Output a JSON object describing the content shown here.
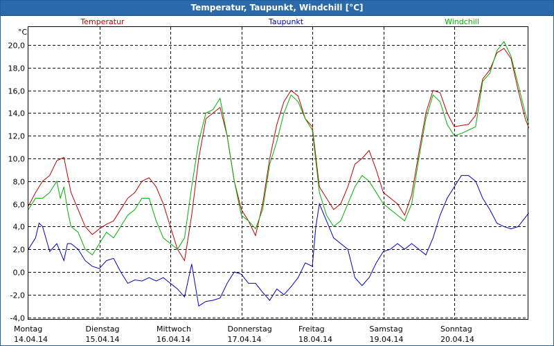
{
  "window": {
    "title": "Temperatur, Taupunkt, Windchill [°C]"
  },
  "chart_data": {
    "type": "line",
    "unit": "°C",
    "ylim": [
      -4,
      21
    ],
    "y_ticks": [
      "20,0",
      "18,0",
      "16,0",
      "14,0",
      "12,0",
      "10,0",
      "8,0",
      "6,0",
      "4,0",
      "2,0",
      "0,0",
      "-2,0",
      "-4,0"
    ],
    "y_tick_values": [
      20,
      18,
      16,
      14,
      12,
      10,
      8,
      6,
      4,
      2,
      0,
      -2,
      -4
    ],
    "x_range": [
      0,
      7
    ],
    "x_ticks": [
      {
        "day": "Montag",
        "date": "14.04.14",
        "x": 0
      },
      {
        "day": "Dienstag",
        "date": "15.04.14",
        "x": 1
      },
      {
        "day": "Mittwoch",
        "date": "16.04.14",
        "x": 2
      },
      {
        "day": "Donnerstag",
        "date": "17.04.14",
        "x": 3
      },
      {
        "day": "Freitag",
        "date": "18.04.14",
        "x": 4
      },
      {
        "day": "Samstag",
        "date": "19.04.14",
        "x": 5
      },
      {
        "day": "Sonntag",
        "date": "20.04.14",
        "x": 6
      }
    ],
    "grid": true,
    "legend_position": "top",
    "series": [
      {
        "name": "Temperatur",
        "color": "#c00000",
        "points": [
          [
            0,
            5.8
          ],
          [
            0.1,
            7.0
          ],
          [
            0.2,
            8.0
          ],
          [
            0.3,
            8.5
          ],
          [
            0.4,
            9.8
          ],
          [
            0.5,
            10.1
          ],
          [
            0.6,
            7.0
          ],
          [
            0.7,
            5.5
          ],
          [
            0.8,
            4.0
          ],
          [
            0.9,
            3.3
          ],
          [
            1.0,
            3.8
          ],
          [
            1.1,
            4.2
          ],
          [
            1.2,
            4.5
          ],
          [
            1.3,
            5.5
          ],
          [
            1.4,
            6.5
          ],
          [
            1.5,
            7.0
          ],
          [
            1.6,
            8.0
          ],
          [
            1.7,
            8.3
          ],
          [
            1.8,
            7.5
          ],
          [
            1.9,
            6.0
          ],
          [
            2.0,
            4.0
          ],
          [
            2.1,
            2.0
          ],
          [
            2.2,
            1.0
          ],
          [
            2.3,
            5.0
          ],
          [
            2.4,
            10.0
          ],
          [
            2.5,
            13.5
          ],
          [
            2.6,
            14.0
          ],
          [
            2.7,
            14.5
          ],
          [
            2.8,
            12.0
          ],
          [
            2.9,
            8.0
          ],
          [
            3.0,
            5.5
          ],
          [
            3.1,
            4.5
          ],
          [
            3.2,
            3.2
          ],
          [
            3.3,
            6.0
          ],
          [
            3.4,
            10.0
          ],
          [
            3.5,
            13.0
          ],
          [
            3.6,
            15.0
          ],
          [
            3.7,
            16.0
          ],
          [
            3.8,
            15.5
          ],
          [
            3.9,
            13.5
          ],
          [
            4.0,
            12.8
          ],
          [
            4.1,
            7.5
          ],
          [
            4.2,
            6.5
          ],
          [
            4.3,
            5.5
          ],
          [
            4.4,
            6.0
          ],
          [
            4.5,
            7.5
          ],
          [
            4.6,
            9.5
          ],
          [
            4.7,
            10.0
          ],
          [
            4.8,
            10.7
          ],
          [
            4.9,
            9.0
          ],
          [
            5.0,
            7.0
          ],
          [
            5.1,
            6.5
          ],
          [
            5.2,
            6.0
          ],
          [
            5.3,
            5.0
          ],
          [
            5.4,
            6.8
          ],
          [
            5.5,
            10.5
          ],
          [
            5.6,
            14.0
          ],
          [
            5.7,
            16.0
          ],
          [
            5.8,
            15.8
          ],
          [
            5.9,
            14.0
          ],
          [
            6.0,
            12.8
          ],
          [
            6.1,
            12.9
          ],
          [
            6.2,
            13.0
          ],
          [
            6.3,
            13.8
          ],
          [
            6.4,
            17.0
          ],
          [
            6.5,
            17.8
          ],
          [
            6.6,
            19.3
          ],
          [
            6.7,
            19.7
          ],
          [
            6.8,
            18.8
          ],
          [
            6.9,
            16.0
          ],
          [
            7.0,
            13.5
          ],
          [
            7.05,
            12.7
          ]
        ]
      },
      {
        "name": "Taupunkt",
        "color": "#0000c0",
        "points": [
          [
            0,
            2.0
          ],
          [
            0.1,
            3.0
          ],
          [
            0.15,
            4.3
          ],
          [
            0.2,
            4.0
          ],
          [
            0.3,
            1.8
          ],
          [
            0.4,
            2.5
          ],
          [
            0.5,
            1.0
          ],
          [
            0.55,
            2.5
          ],
          [
            0.6,
            2.5
          ],
          [
            0.7,
            2.0
          ],
          [
            0.8,
            1.0
          ],
          [
            0.9,
            0.5
          ],
          [
            1.0,
            0.3
          ],
          [
            1.1,
            1.0
          ],
          [
            1.2,
            1.2
          ],
          [
            1.3,
            0.0
          ],
          [
            1.4,
            -1.0
          ],
          [
            1.5,
            -0.7
          ],
          [
            1.6,
            -0.8
          ],
          [
            1.7,
            -0.5
          ],
          [
            1.8,
            -0.8
          ],
          [
            1.9,
            -0.5
          ],
          [
            2.0,
            -1.0
          ],
          [
            2.1,
            -1.5
          ],
          [
            2.2,
            -2.2
          ],
          [
            2.3,
            0.7
          ],
          [
            2.4,
            -3.0
          ],
          [
            2.5,
            -2.6
          ],
          [
            2.6,
            -2.5
          ],
          [
            2.7,
            -2.3
          ],
          [
            2.8,
            -1.0
          ],
          [
            2.9,
            0.0
          ],
          [
            3.0,
            -0.2
          ],
          [
            3.1,
            -1.0
          ],
          [
            3.2,
            -1.0
          ],
          [
            3.3,
            -1.8
          ],
          [
            3.4,
            -2.5
          ],
          [
            3.5,
            -1.5
          ],
          [
            3.6,
            -2.0
          ],
          [
            3.7,
            -1.3
          ],
          [
            3.8,
            -0.5
          ],
          [
            3.9,
            0.8
          ],
          [
            4.0,
            0.5
          ],
          [
            4.05,
            4.0
          ],
          [
            4.1,
            6.0
          ],
          [
            4.2,
            4.5
          ],
          [
            4.3,
            3.0
          ],
          [
            4.4,
            2.5
          ],
          [
            4.5,
            2.0
          ],
          [
            4.6,
            -0.5
          ],
          [
            4.7,
            -1.2
          ],
          [
            4.8,
            -0.5
          ],
          [
            4.9,
            0.8
          ],
          [
            5.0,
            1.8
          ],
          [
            5.1,
            2.0
          ],
          [
            5.2,
            2.5
          ],
          [
            5.3,
            2.0
          ],
          [
            5.4,
            2.5
          ],
          [
            5.5,
            2.0
          ],
          [
            5.6,
            1.5
          ],
          [
            5.7,
            3.0
          ],
          [
            5.8,
            5.0
          ],
          [
            5.9,
            6.5
          ],
          [
            6.0,
            7.5
          ],
          [
            6.1,
            8.5
          ],
          [
            6.2,
            8.5
          ],
          [
            6.3,
            8.0
          ],
          [
            6.4,
            6.5
          ],
          [
            6.5,
            5.5
          ],
          [
            6.6,
            4.3
          ],
          [
            6.7,
            4.0
          ],
          [
            6.8,
            3.8
          ],
          [
            6.9,
            4.0
          ],
          [
            7.0,
            4.8
          ],
          [
            7.05,
            5.2
          ]
        ]
      },
      {
        "name": "Windchill",
        "color": "#00b000",
        "points": [
          [
            0,
            5.5
          ],
          [
            0.1,
            6.5
          ],
          [
            0.2,
            6.5
          ],
          [
            0.3,
            7.0
          ],
          [
            0.4,
            8.0
          ],
          [
            0.45,
            6.5
          ],
          [
            0.5,
            7.5
          ],
          [
            0.55,
            5.5
          ],
          [
            0.6,
            4.0
          ],
          [
            0.7,
            3.5
          ],
          [
            0.8,
            2.0
          ],
          [
            0.9,
            1.5
          ],
          [
            1.0,
            2.5
          ],
          [
            1.1,
            3.5
          ],
          [
            1.2,
            3.0
          ],
          [
            1.3,
            4.0
          ],
          [
            1.4,
            5.0
          ],
          [
            1.5,
            5.5
          ],
          [
            1.6,
            6.5
          ],
          [
            1.7,
            6.5
          ],
          [
            1.8,
            4.5
          ],
          [
            1.9,
            3.0
          ],
          [
            2.0,
            2.5
          ],
          [
            2.1,
            2.0
          ],
          [
            2.2,
            3.0
          ],
          [
            2.3,
            7.5
          ],
          [
            2.4,
            11.5
          ],
          [
            2.5,
            14.0
          ],
          [
            2.6,
            14.3
          ],
          [
            2.7,
            15.3
          ],
          [
            2.8,
            12.0
          ],
          [
            2.9,
            8.0
          ],
          [
            3.0,
            5.0
          ],
          [
            3.1,
            4.5
          ],
          [
            3.2,
            3.8
          ],
          [
            3.3,
            5.5
          ],
          [
            3.4,
            9.5
          ],
          [
            3.5,
            11.5
          ],
          [
            3.6,
            14.0
          ],
          [
            3.7,
            15.6
          ],
          [
            3.8,
            15.0
          ],
          [
            3.9,
            13.5
          ],
          [
            4.0,
            12.5
          ],
          [
            4.1,
            7.0
          ],
          [
            4.2,
            5.0
          ],
          [
            4.3,
            4.0
          ],
          [
            4.4,
            4.5
          ],
          [
            4.5,
            6.0
          ],
          [
            4.6,
            7.5
          ],
          [
            4.7,
            8.5
          ],
          [
            4.8,
            8.0
          ],
          [
            4.9,
            7.0
          ],
          [
            5.0,
            6.0
          ],
          [
            5.1,
            5.5
          ],
          [
            5.2,
            5.0
          ],
          [
            5.3,
            4.5
          ],
          [
            5.4,
            6.0
          ],
          [
            5.5,
            10.0
          ],
          [
            5.6,
            13.5
          ],
          [
            5.7,
            15.6
          ],
          [
            5.8,
            15.0
          ],
          [
            5.9,
            13.0
          ],
          [
            6.0,
            12.0
          ],
          [
            6.1,
            12.2
          ],
          [
            6.2,
            12.5
          ],
          [
            6.3,
            12.8
          ],
          [
            6.4,
            16.8
          ],
          [
            6.5,
            17.5
          ],
          [
            6.6,
            19.5
          ],
          [
            6.7,
            20.3
          ],
          [
            6.8,
            19.0
          ],
          [
            6.9,
            16.5
          ],
          [
            7.0,
            14.0
          ],
          [
            7.05,
            13.0
          ]
        ]
      }
    ]
  }
}
